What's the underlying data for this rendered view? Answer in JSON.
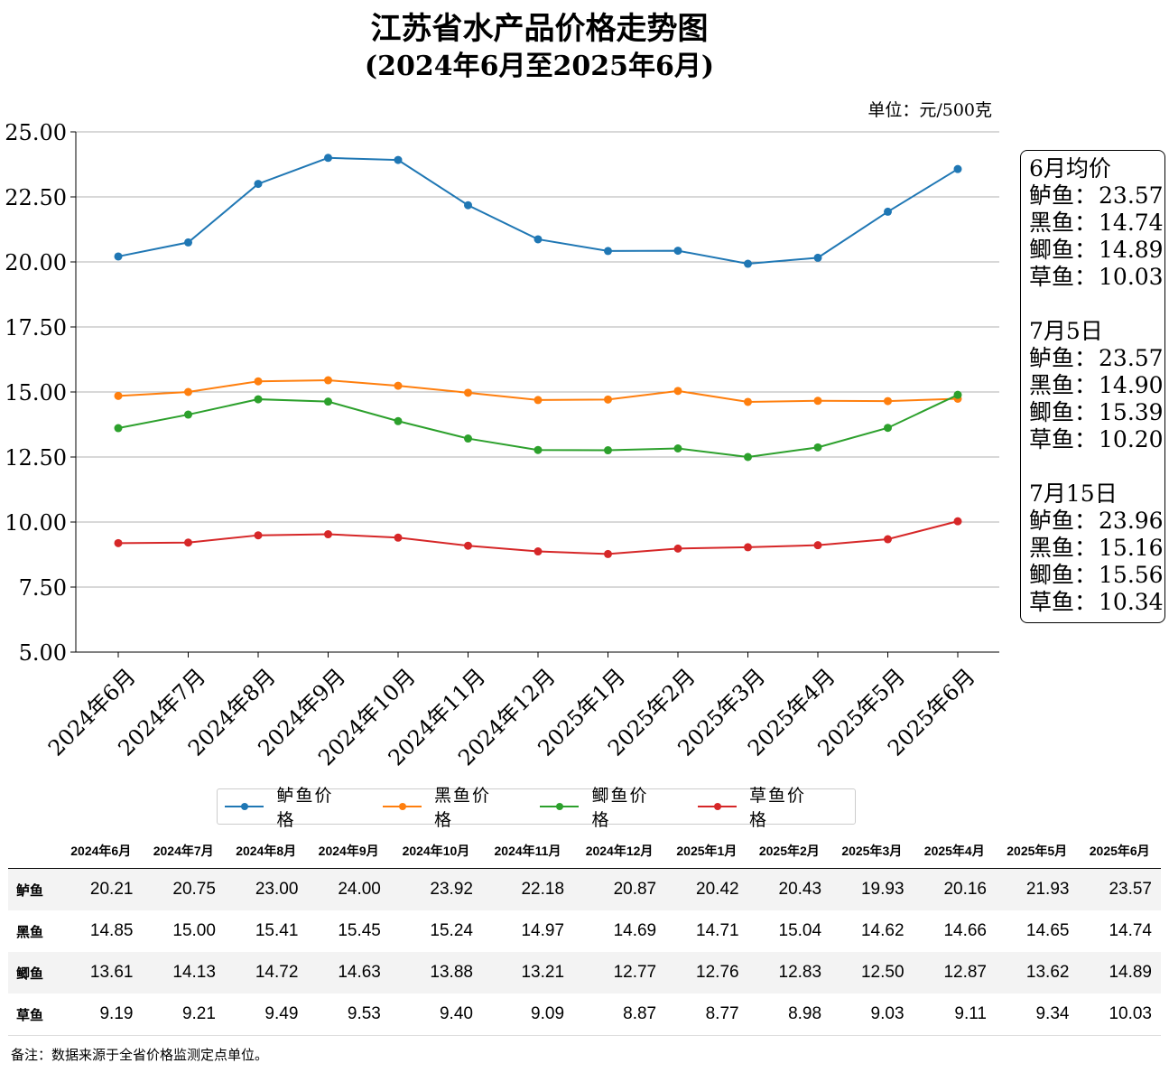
{
  "title": "江苏省水产品价格走势图",
  "subtitle": "(2024年6月至2025年6月)",
  "unit": "单位：元/500克",
  "note": "备注：数据来源于全省价格监测定点单位。",
  "chart_data": {
    "type": "line",
    "categories": [
      "2024年6月",
      "2024年7月",
      "2024年8月",
      "2024年9月",
      "2024年10月",
      "2024年11月",
      "2024年12月",
      "2025年1月",
      "2025年2月",
      "2025年3月",
      "2025年4月",
      "2025年5月",
      "2025年6月"
    ],
    "ylim": [
      5.0,
      25.0
    ],
    "yticks": [
      "5.00",
      "7.50",
      "10.00",
      "12.50",
      "15.00",
      "17.50",
      "20.00",
      "22.50",
      "25.00"
    ],
    "grid": "horizontal",
    "legend_position": "bottom",
    "series": [
      {
        "name": "鲈鱼价格",
        "color": "#1f77b4",
        "values": [
          20.21,
          20.75,
          23.0,
          24.0,
          23.92,
          22.18,
          20.87,
          20.42,
          20.43,
          19.93,
          20.16,
          21.93,
          23.57
        ]
      },
      {
        "name": "黑鱼价格",
        "color": "#ff7f0e",
        "values": [
          14.85,
          15.0,
          15.41,
          15.45,
          15.24,
          14.97,
          14.69,
          14.71,
          15.04,
          14.62,
          14.66,
          14.65,
          14.74
        ]
      },
      {
        "name": "鲫鱼价格",
        "color": "#2ca02c",
        "values": [
          13.61,
          14.13,
          14.72,
          14.63,
          13.88,
          13.21,
          12.77,
          12.76,
          12.83,
          12.5,
          12.87,
          13.62,
          14.89
        ]
      },
      {
        "name": "草鱼价格",
        "color": "#d62728",
        "values": [
          9.19,
          9.21,
          9.49,
          9.53,
          9.4,
          9.09,
          8.87,
          8.77,
          8.98,
          9.03,
          9.11,
          9.34,
          10.03
        ]
      }
    ]
  },
  "infobox": [
    {
      "heading": "6月均价",
      "rows": [
        {
          "name": "鲈鱼：",
          "value": "23.57"
        },
        {
          "name": "黑鱼：",
          "value": "14.74"
        },
        {
          "name": "鲫鱼：",
          "value": "14.89"
        },
        {
          "name": "草鱼：",
          "value": "10.03"
        }
      ]
    },
    {
      "heading": "7月5日",
      "rows": [
        {
          "name": "鲈鱼：",
          "value": "23.57"
        },
        {
          "name": "黑鱼：",
          "value": "14.90"
        },
        {
          "name": "鲫鱼：",
          "value": "15.39"
        },
        {
          "name": "草鱼：",
          "value": "10.20"
        }
      ]
    },
    {
      "heading": "7月15日",
      "rows": [
        {
          "name": "鲈鱼：",
          "value": "23.96"
        },
        {
          "name": "黑鱼：",
          "value": "15.16"
        },
        {
          "name": "鲫鱼：",
          "value": "15.56"
        },
        {
          "name": "草鱼：",
          "value": "10.34"
        }
      ]
    }
  ],
  "table": {
    "columns": [
      "2024年6月",
      "2024年7月",
      "2024年8月",
      "2024年9月",
      "2024年10月",
      "2024年11月",
      "2024年12月",
      "2025年1月",
      "2025年2月",
      "2025年3月",
      "2025年4月",
      "2025年5月",
      "2025年6月"
    ],
    "rows": [
      {
        "label": "鲈鱼",
        "cells": [
          "20.21",
          "20.75",
          "23.00",
          "24.00",
          "23.92",
          "22.18",
          "20.87",
          "20.42",
          "20.43",
          "19.93",
          "20.16",
          "21.93",
          "23.57"
        ]
      },
      {
        "label": "黑鱼",
        "cells": [
          "14.85",
          "15.00",
          "15.41",
          "15.45",
          "15.24",
          "14.97",
          "14.69",
          "14.71",
          "15.04",
          "14.62",
          "14.66",
          "14.65",
          "14.74"
        ]
      },
      {
        "label": "鲫鱼",
        "cells": [
          "13.61",
          "14.13",
          "14.72",
          "14.63",
          "13.88",
          "13.21",
          "12.77",
          "12.76",
          "12.83",
          "12.50",
          "12.87",
          "13.62",
          "14.89"
        ]
      },
      {
        "label": "草鱼",
        "cells": [
          "9.19",
          "9.21",
          "9.49",
          "9.53",
          "9.40",
          "9.09",
          "8.87",
          "8.77",
          "8.98",
          "9.03",
          "9.11",
          "9.34",
          "10.03"
        ]
      }
    ]
  }
}
